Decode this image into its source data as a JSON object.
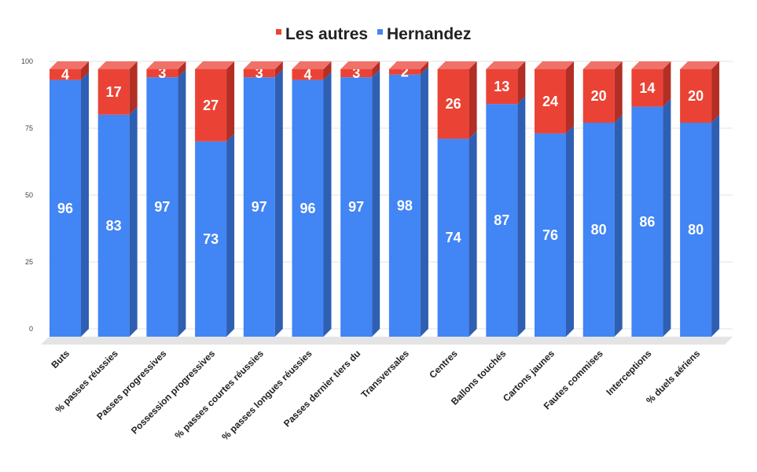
{
  "chart_data": {
    "type": "bar",
    "stacked": true,
    "three_d": true,
    "categories": [
      "Buts",
      "% passes réussies",
      "Passes progressives",
      "Possession progressives",
      "% passes courtes réussies",
      "% passes longues réussies",
      "Passes dernier tiers du",
      "Transversales",
      "Centres",
      "Ballons touchés",
      "Cartons jaunes",
      "Fautes commises",
      "Interceptions",
      "% duels aériens"
    ],
    "series": [
      {
        "name": "Hernandez",
        "color": "#4285f4",
        "values": [
          96,
          83,
          97,
          73,
          97,
          96,
          97,
          98,
          74,
          87,
          76,
          80,
          86,
          80
        ]
      },
      {
        "name": "Les autres",
        "color": "#ea4335",
        "values": [
          4,
          17,
          3,
          27,
          3,
          4,
          3,
          2,
          26,
          13,
          24,
          20,
          14,
          20
        ]
      }
    ],
    "legend_order": [
      "Les autres",
      "Hernandez"
    ],
    "legend_position": "top",
    "ylim": [
      0,
      100
    ],
    "yticks": [
      "0",
      "25",
      "50",
      "75",
      "100"
    ],
    "grid": true
  }
}
